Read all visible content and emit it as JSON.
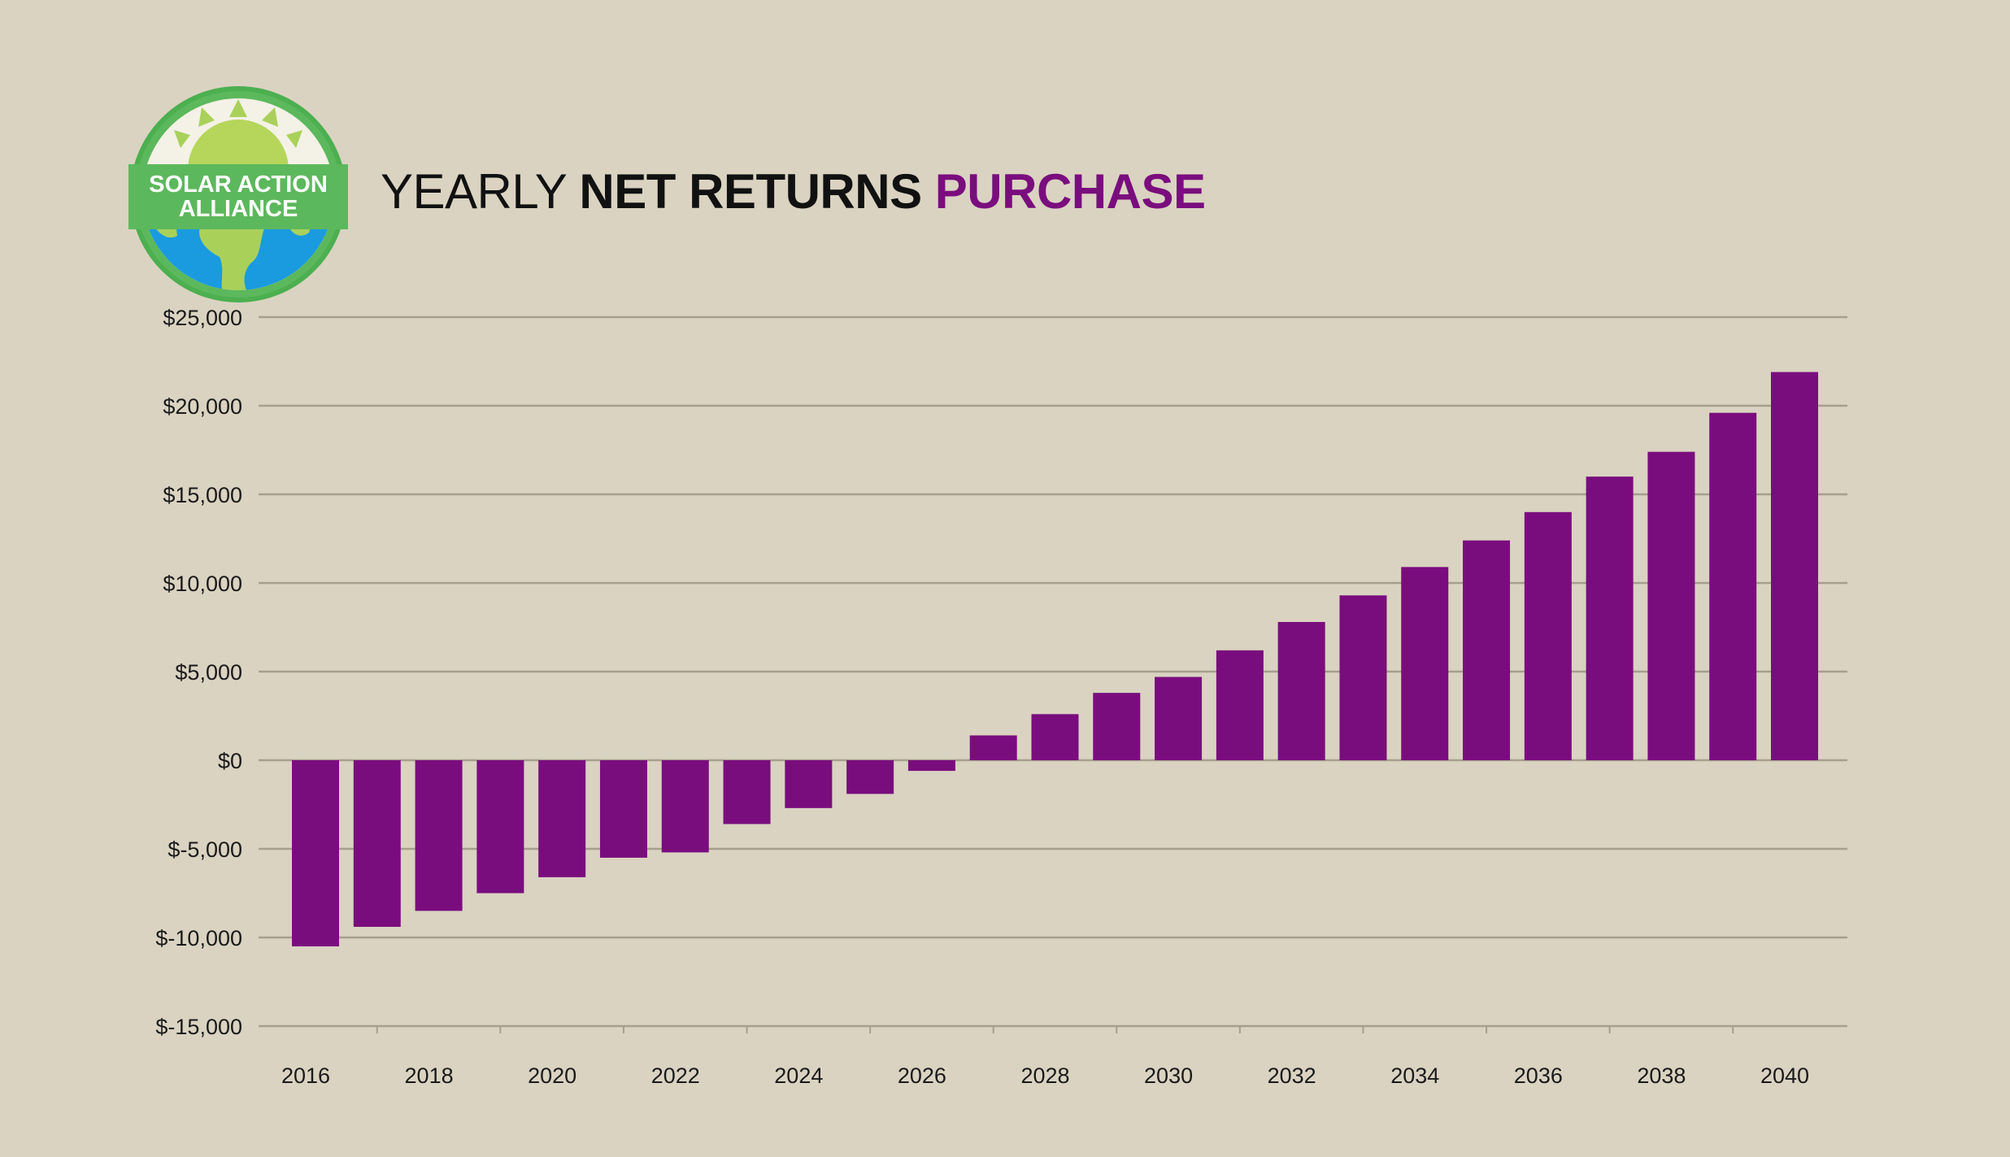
{
  "title": {
    "part1": "YEARLY ",
    "part2": "NET RETURNS",
    "part3": " PURCHASE"
  },
  "logo": {
    "line1": "SOLAR ACTION",
    "line2": "ALLIANCE"
  },
  "colors": {
    "background": "#dad3c1",
    "bar": "#7a0d7e",
    "grid": "#a59f8c",
    "accent": "#7a0d7e"
  },
  "chart_data": {
    "type": "bar",
    "categories": [
      "2016",
      "2017",
      "2018",
      "2019",
      "2020",
      "2021",
      "2022",
      "2023",
      "2024",
      "2025",
      "2026",
      "2027",
      "2028",
      "2029",
      "2030",
      "2031",
      "2032",
      "2033",
      "2034",
      "2035",
      "2036",
      "2037",
      "2038",
      "2039",
      "2040"
    ],
    "x_tick_labels": [
      "2016",
      "2018",
      "2020",
      "2022",
      "2024",
      "2026",
      "2028",
      "2030",
      "2032",
      "2034",
      "2036",
      "2038",
      "2040"
    ],
    "values": [
      -10500,
      -9400,
      -8500,
      -7500,
      -6600,
      -5500,
      -5200,
      -3600,
      -2700,
      -1900,
      -600,
      1400,
      2600,
      3800,
      4700,
      6200,
      7800,
      9300,
      10900,
      12400,
      14000,
      16000,
      17400,
      19600,
      21900
    ],
    "y_ticks": [
      25000,
      20000,
      15000,
      10000,
      5000,
      0,
      -5000,
      -10000,
      -15000
    ],
    "y_tick_labels": [
      "$25,000",
      "$20,000",
      "$15,000",
      "$10,000",
      "$5,000",
      "$0",
      "$-5,000",
      "$-10,000",
      "$-15,000"
    ],
    "ylim": [
      -15000,
      25000
    ],
    "xlabel": "",
    "ylabel": "",
    "grid": true
  }
}
